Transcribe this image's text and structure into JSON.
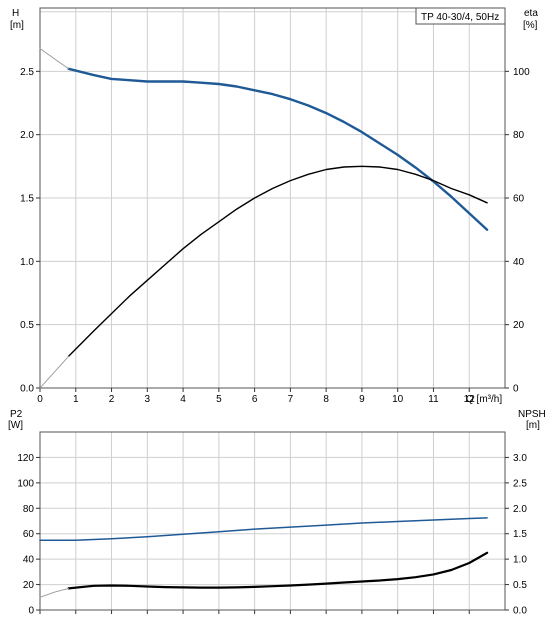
{
  "chart_data": [
    {
      "type": "line",
      "title": "TP 40-30/4, 50Hz",
      "xlabel": "Q [m³/h]",
      "xlim": [
        0,
        13
      ],
      "x_ticks": [
        "0",
        "1",
        "2",
        "3",
        "4",
        "5",
        "6",
        "7",
        "8",
        "9",
        "10",
        "11",
        "12"
      ],
      "left_axis": {
        "label_top": "H",
        "label_unit": "[m]",
        "ylim": [
          0,
          3.0
        ],
        "ticks": [
          "0.0",
          "0.5",
          "1.0",
          "1.5",
          "2.0",
          "2.5"
        ]
      },
      "right_axis": {
        "label_top": "eta",
        "label_unit": "[%]",
        "ylim": [
          0,
          120
        ],
        "ticks": [
          "0",
          "20",
          "40",
          "60",
          "80",
          "100"
        ]
      },
      "grid": true,
      "series": [
        {
          "name": "H",
          "axis": "left",
          "color": "#1f5a96",
          "x": [
            0.8,
            1.5,
            2,
            2.5,
            3,
            3.5,
            4,
            4.5,
            5,
            5.5,
            6,
            6.5,
            7,
            7.5,
            8,
            8.5,
            9,
            9.5,
            10,
            10.5,
            11,
            11.5,
            12,
            12.5
          ],
          "y": [
            2.52,
            2.47,
            2.44,
            2.43,
            2.42,
            2.42,
            2.42,
            2.41,
            2.4,
            2.38,
            2.35,
            2.32,
            2.28,
            2.23,
            2.17,
            2.1,
            2.02,
            1.93,
            1.84,
            1.74,
            1.63,
            1.51,
            1.38,
            1.25
          ]
        },
        {
          "name": "H extrapolated",
          "axis": "left",
          "color": "#999999",
          "x": [
            0,
            0.4,
            0.8
          ],
          "y": [
            2.68,
            2.6,
            2.52
          ]
        },
        {
          "name": "eta",
          "axis": "right",
          "color": "#000000",
          "x": [
            0.8,
            1.5,
            2,
            2.5,
            3,
            3.5,
            4,
            4.5,
            5,
            5.5,
            6,
            6.5,
            7,
            7.5,
            8,
            8.5,
            9,
            9.5,
            10,
            10.5,
            11,
            11.5,
            12,
            12.5
          ],
          "y": [
            10,
            18,
            23.5,
            29,
            34,
            39,
            44,
            48.5,
            52.5,
            56.5,
            60,
            63,
            65.5,
            67.5,
            69,
            69.8,
            70,
            69.8,
            69,
            67.5,
            65.5,
            63,
            61,
            58.5
          ]
        },
        {
          "name": "eta extrapolated",
          "axis": "right",
          "color": "#999999",
          "x": [
            0,
            0.4,
            0.8
          ],
          "y": [
            0,
            5,
            10
          ]
        }
      ]
    },
    {
      "type": "line",
      "xlim": [
        0,
        13
      ],
      "x_ticks": [
        "0",
        "1",
        "2",
        "3",
        "4",
        "5",
        "6",
        "7",
        "8",
        "9",
        "10",
        "11",
        "12"
      ],
      "left_axis": {
        "label_top": "P2",
        "label_unit": "[W]",
        "ylim": [
          0,
          140
        ],
        "ticks": [
          "0",
          "20",
          "40",
          "60",
          "80",
          "100",
          "120"
        ]
      },
      "right_axis": {
        "label_top": "NPSH",
        "label_unit": "[m]",
        "ylim": [
          0,
          3.5
        ],
        "ticks": [
          "0.0",
          "0.5",
          "1.0",
          "1.5",
          "2.0",
          "2.5",
          "3.0"
        ]
      },
      "grid": true,
      "series": [
        {
          "name": "P2",
          "axis": "left",
          "color": "#000000",
          "x": [
            0.8,
            1.5,
            2,
            2.5,
            3,
            3.5,
            4,
            4.5,
            5,
            5.5,
            6,
            6.5,
            7,
            7.5,
            8,
            8.5,
            9,
            9.5,
            10,
            10.5,
            11,
            11.5,
            12,
            12.5
          ],
          "y": [
            17,
            19,
            19.3,
            19,
            18.5,
            18,
            17.8,
            17.6,
            17.6,
            17.8,
            18.2,
            18.7,
            19.3,
            20,
            20.8,
            21.6,
            22.4,
            23.2,
            24.3,
            25.8,
            28,
            31.5,
            37,
            45
          ]
        },
        {
          "name": "P2 extrapolated",
          "axis": "left",
          "color": "#999999",
          "x": [
            0,
            0.4,
            0.8
          ],
          "y": [
            10,
            14,
            17
          ]
        },
        {
          "name": "NPSH",
          "axis": "right",
          "color": "#1f5a96",
          "x": [
            0,
            1,
            2,
            3,
            4,
            5,
            6,
            7,
            8,
            9,
            10,
            11,
            12,
            12.5
          ],
          "y": [
            1.37,
            1.37,
            1.4,
            1.44,
            1.49,
            1.54,
            1.59,
            1.63,
            1.67,
            1.71,
            1.74,
            1.77,
            1.8,
            1.81
          ]
        }
      ]
    }
  ]
}
